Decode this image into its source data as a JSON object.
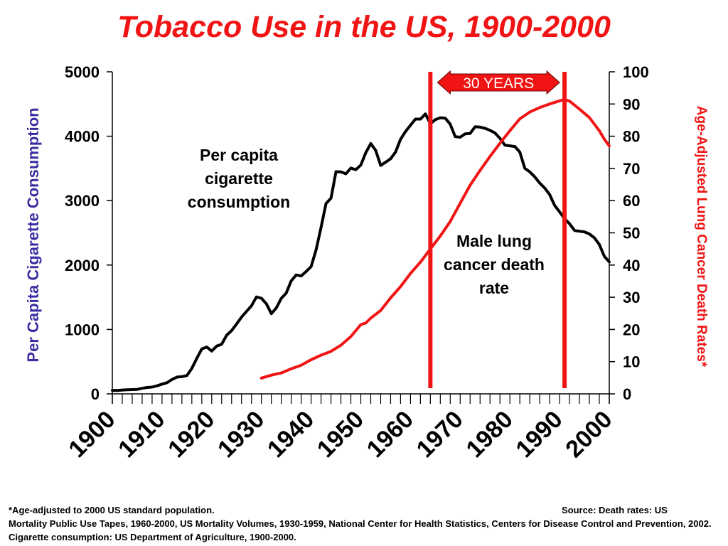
{
  "title": "Tobacco Use in the US, 1900-2000",
  "chart_data": {
    "type": "line",
    "xlabel": "",
    "x_ticks": [
      "1900",
      "1910",
      "1920",
      "1930",
      "1940",
      "1950",
      "1960",
      "1970",
      "1980",
      "1990",
      "2000"
    ],
    "xlim": [
      1900,
      2000
    ],
    "y_left": {
      "label": "Per Capita Cigarette Consumption",
      "ticks": [
        "5000",
        "4000",
        "3000",
        "2000",
        "1000",
        "0"
      ],
      "ylim": [
        0,
        5000
      ],
      "color": "#3a2ea0"
    },
    "y_right": {
      "label": "Age-Adjusted Lung Cancer Death Rates*",
      "ticks": [
        "100",
        "90",
        "80",
        "70",
        "60",
        "50",
        "40",
        "30",
        "20",
        "10",
        "0"
      ],
      "ylim": [
        0,
        100
      ],
      "color": "#f01414"
    },
    "series": [
      {
        "axis": "left",
        "color": "#000000",
        "label": "Per capita cigarette consumption",
        "points": [
          [
            1900,
            54
          ],
          [
            1901,
            53
          ],
          [
            1902,
            60
          ],
          [
            1903,
            64
          ],
          [
            1904,
            66
          ],
          [
            1905,
            70
          ],
          [
            1906,
            86
          ],
          [
            1907,
            99
          ],
          [
            1908,
            105
          ],
          [
            1909,
            125
          ],
          [
            1910,
            151
          ],
          [
            1911,
            173
          ],
          [
            1912,
            223
          ],
          [
            1913,
            260
          ],
          [
            1914,
            267
          ],
          [
            1915,
            285
          ],
          [
            1916,
            395
          ],
          [
            1917,
            551
          ],
          [
            1918,
            697
          ],
          [
            1919,
            727
          ],
          [
            1920,
            665
          ],
          [
            1921,
            742
          ],
          [
            1922,
            770
          ],
          [
            1923,
            911
          ],
          [
            1924,
            982
          ],
          [
            1925,
            1085
          ],
          [
            1926,
            1191
          ],
          [
            1927,
            1279
          ],
          [
            1928,
            1366
          ],
          [
            1929,
            1504
          ],
          [
            1930,
            1485
          ],
          [
            1931,
            1399
          ],
          [
            1932,
            1245
          ],
          [
            1933,
            1334
          ],
          [
            1934,
            1483
          ],
          [
            1935,
            1564
          ],
          [
            1936,
            1754
          ],
          [
            1937,
            1847
          ],
          [
            1938,
            1830
          ],
          [
            1939,
            1900
          ],
          [
            1940,
            1976
          ],
          [
            1941,
            2236
          ],
          [
            1942,
            2585
          ],
          [
            1943,
            2956
          ],
          [
            1944,
            3039
          ],
          [
            1945,
            3449
          ],
          [
            1946,
            3446
          ],
          [
            1947,
            3416
          ],
          [
            1948,
            3505
          ],
          [
            1949,
            3480
          ],
          [
            1950,
            3552
          ],
          [
            1951,
            3744
          ],
          [
            1952,
            3886
          ],
          [
            1953,
            3778
          ],
          [
            1954,
            3546
          ],
          [
            1955,
            3597
          ],
          [
            1956,
            3650
          ],
          [
            1957,
            3755
          ],
          [
            1958,
            3953
          ],
          [
            1959,
            4073
          ],
          [
            1960,
            4171
          ],
          [
            1961,
            4266
          ],
          [
            1962,
            4266
          ],
          [
            1963,
            4345
          ],
          [
            1964,
            4194
          ],
          [
            1965,
            4258
          ],
          [
            1966,
            4287
          ],
          [
            1967,
            4280
          ],
          [
            1968,
            4186
          ],
          [
            1969,
            3993
          ],
          [
            1970,
            3985
          ],
          [
            1971,
            4037
          ],
          [
            1972,
            4043
          ],
          [
            1973,
            4148
          ],
          [
            1974,
            4141
          ],
          [
            1975,
            4123
          ],
          [
            1976,
            4092
          ],
          [
            1977,
            4051
          ],
          [
            1978,
            3967
          ],
          [
            1979,
            3861
          ],
          [
            1980,
            3851
          ],
          [
            1981,
            3840
          ],
          [
            1982,
            3753
          ],
          [
            1983,
            3502
          ],
          [
            1984,
            3446
          ],
          [
            1985,
            3370
          ],
          [
            1986,
            3274
          ],
          [
            1987,
            3197
          ],
          [
            1988,
            3096
          ],
          [
            1989,
            2926
          ],
          [
            1990,
            2826
          ],
          [
            1991,
            2720
          ],
          [
            1992,
            2641
          ],
          [
            1993,
            2538
          ],
          [
            1994,
            2524
          ],
          [
            1995,
            2515
          ],
          [
            1996,
            2482
          ],
          [
            1997,
            2423
          ],
          [
            1998,
            2320
          ],
          [
            1999,
            2136
          ],
          [
            2000,
            2049
          ]
        ]
      },
      {
        "axis": "right",
        "color": "#f01414",
        "label": "Male lung cancer death rate",
        "points": [
          [
            1930,
            4.9
          ],
          [
            1932,
            5.8
          ],
          [
            1934,
            6.5
          ],
          [
            1936,
            7.8
          ],
          [
            1938,
            8.9
          ],
          [
            1940,
            10.6
          ],
          [
            1942,
            12.0
          ],
          [
            1944,
            13.2
          ],
          [
            1946,
            15.1
          ],
          [
            1948,
            17.8
          ],
          [
            1950,
            21.5
          ],
          [
            1951,
            22.0
          ],
          [
            1952,
            23.5
          ],
          [
            1954,
            25.9
          ],
          [
            1956,
            29.8
          ],
          [
            1958,
            33.3
          ],
          [
            1960,
            37.4
          ],
          [
            1962,
            40.9
          ],
          [
            1964,
            45.0
          ],
          [
            1966,
            49.0
          ],
          [
            1968,
            53.5
          ],
          [
            1970,
            59.2
          ],
          [
            1972,
            64.8
          ],
          [
            1974,
            69.4
          ],
          [
            1976,
            73.7
          ],
          [
            1978,
            77.8
          ],
          [
            1980,
            81.7
          ],
          [
            1982,
            85.4
          ],
          [
            1984,
            87.5
          ],
          [
            1986,
            88.9
          ],
          [
            1988,
            90.0
          ],
          [
            1990,
            91.0
          ],
          [
            1991,
            91.4
          ],
          [
            1992,
            90.9
          ],
          [
            1994,
            88.4
          ],
          [
            1996,
            85.8
          ],
          [
            1998,
            81.7
          ],
          [
            1999,
            79.1
          ],
          [
            2000,
            77.0
          ]
        ]
      }
    ],
    "annotations": {
      "cig_label": [
        "Per capita",
        "cigarette",
        "consumption"
      ],
      "lung_label": [
        "Male lung",
        "cancer death",
        "rate"
      ],
      "years_label": "30 YEARS",
      "vline_years": [
        1964,
        1991
      ],
      "vline_color": "#f01414"
    }
  },
  "footnote": {
    "left": "*Age-adjusted to 2000 US standard population.",
    "right": "Source: Death rates: US",
    "body": "Mortality Public Use Tapes, 1960-2000, US Mortality Volumes, 1930-1959, National Center for Health Statistics, Centers for Disease Control and Prevention, 2002. Cigarette consumption: US Department of Agriculture, 1900-2000."
  }
}
